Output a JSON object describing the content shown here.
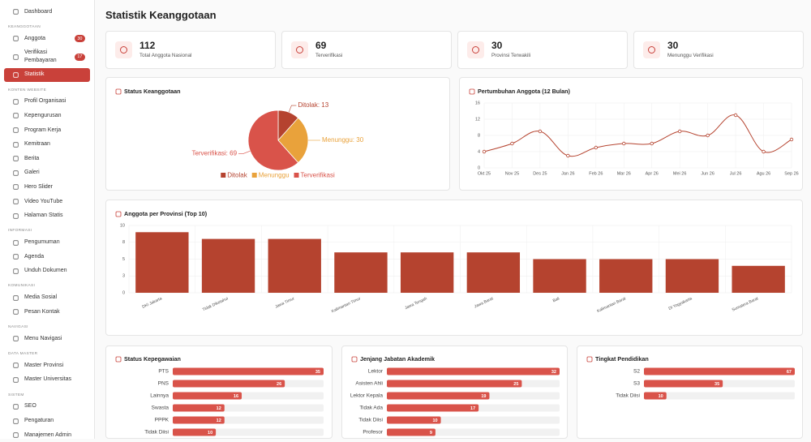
{
  "sidebar": {
    "sections": [
      {
        "items": [
          {
            "label": "Dashboard"
          }
        ]
      },
      {
        "title": "KEANGGOTAAN",
        "items": [
          {
            "label": "Anggota",
            "badge": 30
          },
          {
            "label": "Verifikasi Pembayaran",
            "badge": 17
          },
          {
            "label": "Statistik",
            "active": true
          }
        ]
      },
      {
        "title": "KONTEN WEBSITE",
        "items": [
          {
            "label": "Profil Organisasi"
          },
          {
            "label": "Kepengurusan"
          },
          {
            "label": "Program Kerja"
          },
          {
            "label": "Kemitraan"
          },
          {
            "label": "Berita"
          },
          {
            "label": "Galeri"
          },
          {
            "label": "Hero Slider"
          },
          {
            "label": "Video YouTube"
          },
          {
            "label": "Halaman Statis"
          }
        ]
      },
      {
        "title": "INFORMASI",
        "items": [
          {
            "label": "Pengumuman"
          },
          {
            "label": "Agenda"
          },
          {
            "label": "Unduh Dokumen"
          }
        ]
      },
      {
        "title": "KOMUNIKASI",
        "items": [
          {
            "label": "Media Sosial"
          },
          {
            "label": "Pesan Kontak"
          }
        ]
      },
      {
        "title": "NAVIGASI",
        "items": [
          {
            "label": "Menu Navigasi"
          }
        ]
      },
      {
        "title": "DATA MASTER",
        "items": [
          {
            "label": "Master Provinsi"
          },
          {
            "label": "Master Universitas"
          }
        ]
      },
      {
        "title": "SISTEM",
        "items": [
          {
            "label": "SEO"
          },
          {
            "label": "Pengaturan"
          },
          {
            "label": "Manajemen Admin"
          }
        ]
      }
    ]
  },
  "header": {
    "title": "Statistik Keanggotaan"
  },
  "stats": [
    {
      "value": 112,
      "label": "Total Anggota Nasional"
    },
    {
      "value": 69,
      "label": "Terverifikasi"
    },
    {
      "value": 30,
      "label": "Provinsi Terwakili"
    },
    {
      "value": 30,
      "label": "Menunggu Verifikasi"
    }
  ],
  "chart_data": [
    {
      "type": "pie",
      "title": "Status Keanggotaan",
      "categories": [
        "Ditolak",
        "Menunggu",
        "Terverifikasi"
      ],
      "values": [
        13,
        30,
        69
      ],
      "value_labels": [
        "Ditolak: 13",
        "Menunggu: 30",
        "Terverifikasi: 69"
      ],
      "colors": [
        "#b5432f",
        "#e9a23b",
        "#d9534a"
      ],
      "legend": "bottom"
    },
    {
      "type": "line",
      "title": "Pertumbuhan Anggota (12 Bulan)",
      "categories": [
        "Okt 25",
        "Nov 25",
        "Des 25",
        "Jan 26",
        "Feb 26",
        "Mar 26",
        "Apr 26",
        "Mei 26",
        "Jun 26",
        "Jul 26",
        "Agu 26",
        "Sep 26"
      ],
      "values": [
        4,
        6,
        9,
        3,
        5,
        6,
        6,
        9,
        8,
        13,
        4,
        7
      ],
      "color": "#b5432f",
      "ylim": [
        0,
        16
      ],
      "yticks": [
        0,
        4,
        8,
        12,
        16
      ],
      "grid": true
    },
    {
      "type": "bar",
      "title": "Anggota per Provinsi (Top 10)",
      "categories": [
        "DKI Jakarta",
        "Tidak Diketahui",
        "Jawa Timur",
        "Kalimantan Timur",
        "Jawa Tengah",
        "Jawa Barat",
        "Bali",
        "Kalimantan Barat",
        "DI Yogyakarta",
        "Sumatera Barat"
      ],
      "values": [
        9,
        8,
        8,
        6,
        6,
        6,
        5,
        5,
        5,
        4
      ],
      "color": "#b5432f",
      "ylim": [
        0,
        10
      ],
      "yticks": [
        0,
        {
          "value": 2.5,
          "label": "3"
        },
        5,
        {
          "value": 7.5,
          "label": "8"
        },
        10
      ],
      "grid": true
    },
    {
      "type": "bar",
      "orientation": "horizontal",
      "title": "Status Kepegawaian",
      "categories": [
        "PTS",
        "PNS",
        "Lainnya",
        "Swasta",
        "PPPK",
        "Tidak Diisi"
      ],
      "values": [
        35,
        26,
        16,
        12,
        12,
        10
      ],
      "color": "#d9534a"
    },
    {
      "type": "bar",
      "orientation": "horizontal",
      "title": "Jenjang Jabatan Akademik",
      "categories": [
        "Lektor",
        "Asisten Ahli",
        "Lektor Kepala",
        "Tidak Ada",
        "Tidak Diisi",
        "Profesor"
      ],
      "values": [
        32,
        25,
        19,
        17,
        10,
        9
      ],
      "color": "#d9534a"
    },
    {
      "type": "bar",
      "orientation": "horizontal",
      "title": "Tingkat Pendidikan",
      "categories": [
        "S2",
        "S3",
        "Tidak Diisi"
      ],
      "values": [
        67,
        35,
        10
      ],
      "color": "#d9534a"
    }
  ]
}
